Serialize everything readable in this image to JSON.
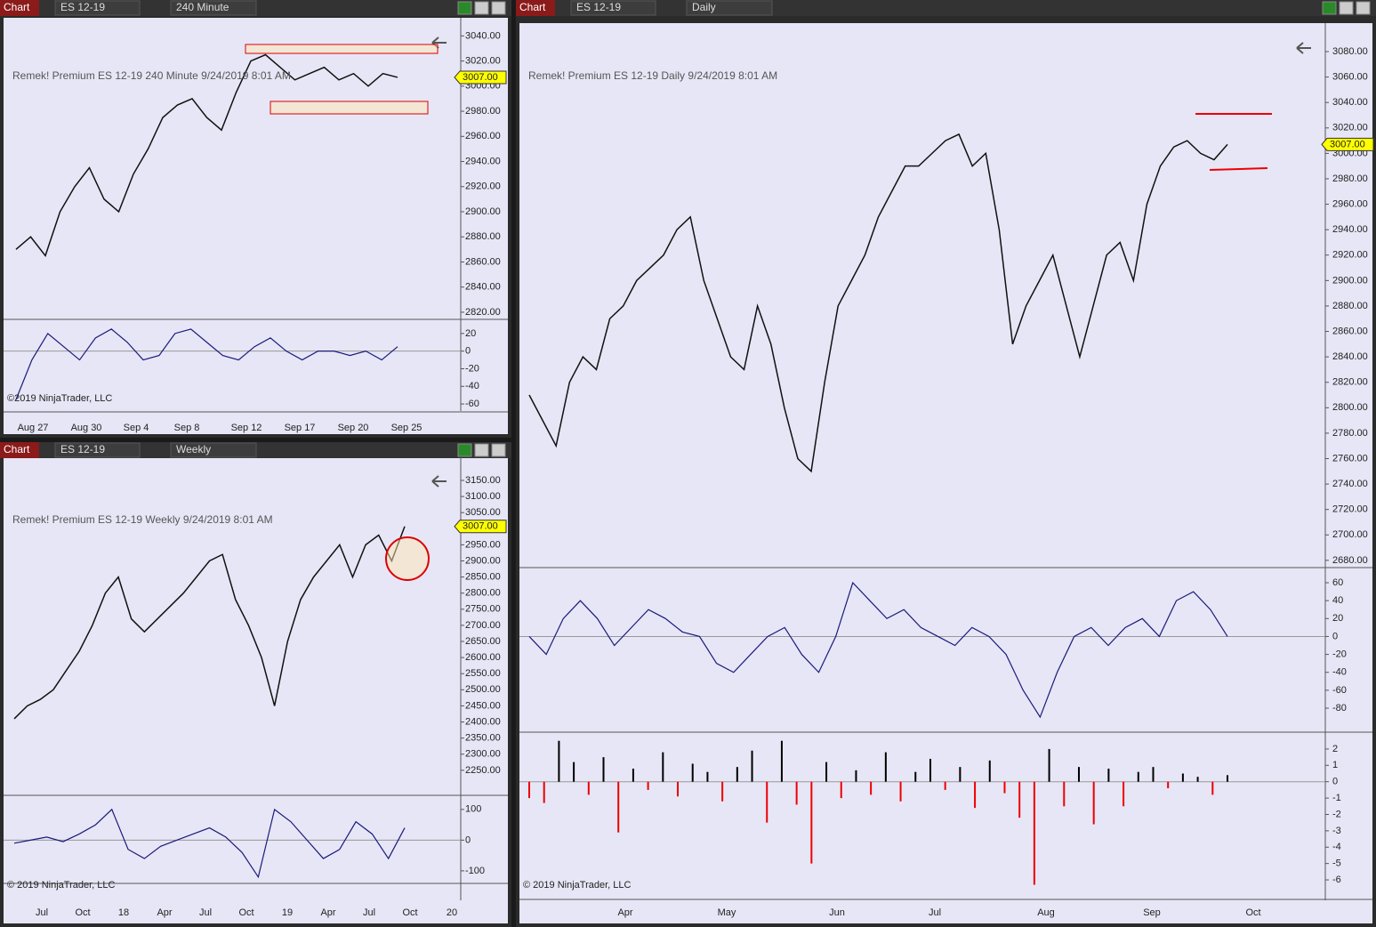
{
  "windows": [
    {
      "toolbar": {
        "tab": "Chart",
        "instrument": "ES 12-19",
        "period": "240 Minute"
      },
      "chart": {
        "type": "line",
        "title": "Remek!  Premium  ES 12-19  240 Minute  9/24/2019 8:01 AM",
        "copyright": "©2019 NinjaTrader, LLC",
        "last_price": {
          "value": 3007,
          "label": "3007.00"
        },
        "ylim": [
          2815,
          3053
        ],
        "yticks": [
          {
            "value": 3040,
            "label": "3040.00"
          },
          {
            "value": 3020,
            "label": "3020.00"
          },
          {
            "value": 3000,
            "label": "3000.00"
          },
          {
            "value": 2980,
            "label": "2980.00"
          },
          {
            "value": 2960,
            "label": "2960.00"
          },
          {
            "value": 2940,
            "label": "2940.00"
          },
          {
            "value": 2920,
            "label": "2920.00"
          },
          {
            "value": 2900,
            "label": "2900.00"
          },
          {
            "value": 2880,
            "label": "2880.00"
          },
          {
            "value": 2860,
            "label": "2860.00"
          },
          {
            "value": 2840,
            "label": "2840.00"
          },
          {
            "value": 2820,
            "label": "2820.00"
          }
        ],
        "closes": [
          2870,
          2880,
          2865,
          2900,
          2920,
          2935,
          2910,
          2900,
          2930,
          2950,
          2975,
          2985,
          2990,
          2975,
          2965,
          2995,
          3020,
          3025,
          3015,
          3005,
          3010,
          3015,
          3005,
          3010,
          3000,
          3010,
          3007
        ],
        "x_labels": [
          "Aug 27",
          "Aug 30",
          "Sep 4",
          "Sep 8",
          "Sep 12",
          "Sep 17",
          "Sep 20",
          "Sep 25"
        ],
        "osc": {
          "ylim": [
            -68,
            35
          ],
          "yticks": [
            20,
            0,
            -20,
            -40,
            -60
          ],
          "values": [
            -55,
            -10,
            20,
            5,
            -10,
            15,
            25,
            10,
            -10,
            -5,
            20,
            25,
            10,
            -5,
            -10,
            5,
            15,
            0,
            -10,
            0,
            0,
            -5,
            0,
            -10,
            5
          ]
        }
      }
    },
    {
      "toolbar": {
        "tab": "Chart",
        "instrument": "ES 12-19",
        "period": "Weekly"
      },
      "chart": {
        "type": "line",
        "title": "Remek!  Premium  ES 12-19  Weekly  9/24/2019 8:01 AM",
        "copyright": "© 2019 NinjaTrader, LLC",
        "last_price": {
          "value": 3007,
          "label": "3007.00"
        },
        "ylim": [
          2175,
          3219
        ],
        "yticks": [
          {
            "value": 3150,
            "label": "3150.00"
          },
          {
            "value": 3100,
            "label": "3100.00"
          },
          {
            "value": 3050,
            "label": "3050.00"
          },
          {
            "value": 3000,
            "label": "3000.00"
          },
          {
            "value": 2950,
            "label": "2950.00"
          },
          {
            "value": 2900,
            "label": "2900.00"
          },
          {
            "value": 2850,
            "label": "2850.00"
          },
          {
            "value": 2800,
            "label": "2800.00"
          },
          {
            "value": 2750,
            "label": "2750.00"
          },
          {
            "value": 2700,
            "label": "2700.00"
          },
          {
            "value": 2650,
            "label": "2650.00"
          },
          {
            "value": 2600,
            "label": "2600.00"
          },
          {
            "value": 2550,
            "label": "2550.00"
          },
          {
            "value": 2500,
            "label": "2500.00"
          },
          {
            "value": 2450,
            "label": "2450.00"
          },
          {
            "value": 2400,
            "label": "2400.00"
          },
          {
            "value": 2350,
            "label": "2350.00"
          },
          {
            "value": 2300,
            "label": "2300.00"
          },
          {
            "value": 2250,
            "label": "2250.00"
          }
        ],
        "closes": [
          2410,
          2450,
          2470,
          2500,
          2560,
          2620,
          2700,
          2800,
          2850,
          2720,
          2680,
          2720,
          2760,
          2800,
          2850,
          2900,
          2920,
          2780,
          2700,
          2600,
          2450,
          2650,
          2780,
          2850,
          2900,
          2950,
          2850,
          2950,
          2980,
          2900,
          3007
        ],
        "x_labels": [
          "Jul",
          "Oct",
          "18",
          "Apr",
          "Jul",
          "Oct",
          "19",
          "Apr",
          "Jul",
          "Oct",
          "20"
        ],
        "osc": {
          "ylim": [
            -138,
            143
          ],
          "yticks": [
            100,
            0,
            -100
          ],
          "values": [
            -10,
            0,
            10,
            -5,
            20,
            50,
            100,
            -30,
            -60,
            -20,
            0,
            20,
            40,
            10,
            -40,
            -120,
            100,
            60,
            0,
            -60,
            -30,
            60,
            20,
            -60,
            40
          ]
        }
      }
    },
    {
      "toolbar": {
        "tab": "Chart",
        "instrument": "ES 12-19",
        "period": "Daily"
      },
      "chart": {
        "type": "line",
        "title": "Remek!  Premium  ES 12-19  Daily  9/24/2019 8:01 AM",
        "copyright": "© 2019 NinjaTrader, LLC",
        "last_price": {
          "value": 3007,
          "label": "3007.00"
        },
        "ylim": [
          2675,
          3101
        ],
        "yticks": [
          {
            "value": 3080,
            "label": "3080.00"
          },
          {
            "value": 3060,
            "label": "3060.00"
          },
          {
            "value": 3040,
            "label": "3040.00"
          },
          {
            "value": 3020,
            "label": "3020.00"
          },
          {
            "value": 3000,
            "label": "3000.00"
          },
          {
            "value": 2980,
            "label": "2980.00"
          },
          {
            "value": 2960,
            "label": "2960.00"
          },
          {
            "value": 2940,
            "label": "2940.00"
          },
          {
            "value": 2920,
            "label": "2920.00"
          },
          {
            "value": 2900,
            "label": "2900.00"
          },
          {
            "value": 2880,
            "label": "2880.00"
          },
          {
            "value": 2860,
            "label": "2860.00"
          },
          {
            "value": 2840,
            "label": "2840.00"
          },
          {
            "value": 2820,
            "label": "2820.00"
          },
          {
            "value": 2800,
            "label": "2800.00"
          },
          {
            "value": 2780,
            "label": "2780.00"
          },
          {
            "value": 2760,
            "label": "2760.00"
          },
          {
            "value": 2740,
            "label": "2740.00"
          },
          {
            "value": 2720,
            "label": "2720.00"
          },
          {
            "value": 2700,
            "label": "2700.00"
          },
          {
            "value": 2680,
            "label": "2680.00"
          }
        ],
        "closes": [
          2810,
          2790,
          2770,
          2820,
          2840,
          2830,
          2870,
          2880,
          2900,
          2910,
          2920,
          2940,
          2950,
          2900,
          2870,
          2840,
          2830,
          2880,
          2850,
          2800,
          2760,
          2750,
          2820,
          2880,
          2900,
          2920,
          2950,
          2970,
          2990,
          2990,
          3000,
          3010,
          3015,
          2990,
          3000,
          2940,
          2850,
          2880,
          2900,
          2920,
          2880,
          2840,
          2880,
          2920,
          2930,
          2900,
          2960,
          2990,
          3005,
          3010,
          3000,
          2995,
          3007
        ],
        "x_labels": [
          "Apr",
          "May",
          "Jun",
          "Jul",
          "Aug",
          "Sep",
          "Oct"
        ],
        "osc": {
          "ylim": [
            -105.8,
            74.9
          ],
          "yticks": [
            60,
            40,
            20,
            0,
            -20,
            -40,
            -60,
            -80
          ],
          "values": [
            0,
            -20,
            20,
            40,
            20,
            -10,
            10,
            30,
            20,
            5,
            0,
            -30,
            -40,
            -20,
            0,
            10,
            -20,
            -40,
            0,
            60,
            40,
            20,
            30,
            10,
            0,
            -10,
            10,
            0,
            -20,
            -60,
            -90,
            -40,
            0,
            10,
            -10,
            10,
            20,
            0,
            40,
            50,
            30,
            0
          ]
        },
        "hist": {
          "ylim": [
            -7.14,
            2.92
          ],
          "yticks": [
            2,
            1,
            0,
            -1,
            -2,
            -3,
            -4,
            -5,
            -6
          ],
          "values": [
            -1,
            -1.3,
            2.5,
            1.2,
            -0.8,
            1.5,
            -3.1,
            0.8,
            -0.5,
            1.8,
            -0.9,
            1.1,
            0.6,
            -1.2,
            0.9,
            1.9,
            -2.5,
            2.5,
            -1.4,
            -5,
            1.2,
            -1,
            0.7,
            -0.8,
            1.8,
            -1.2,
            0.6,
            1.4,
            -0.5,
            0.9,
            -1.6,
            1.3,
            -0.7,
            -2.2,
            -6.3,
            2,
            -1.5,
            0.9,
            -2.6,
            0.8,
            -1.5,
            0.6,
            0.9,
            -0.4,
            0.5,
            0.3,
            -0.8,
            0.4
          ]
        }
      }
    }
  ]
}
